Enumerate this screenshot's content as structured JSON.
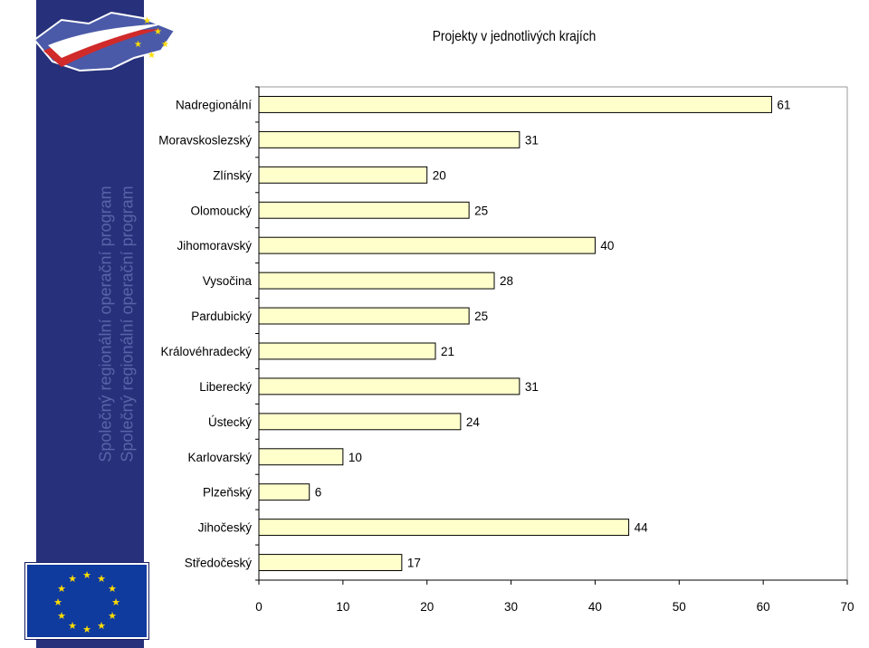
{
  "sidebar": {
    "band_text": "Společný regionální operační program",
    "background": "#27307a"
  },
  "chart_data": {
    "type": "bar",
    "orientation": "horizontal",
    "title": "Projekty v jednotlivých krajích",
    "categories": [
      "Nadregionální",
      "Moravskoslezský",
      "Zlínský",
      "Olomoucký",
      "Jihomoravský",
      "Vysočina",
      "Pardubický",
      "Královéhradecký",
      "Liberecký",
      "Ústecký",
      "Karlovarský",
      "Plzeňský",
      "Jihočeský",
      "Středočeský"
    ],
    "values": [
      61,
      31,
      20,
      25,
      40,
      28,
      25,
      21,
      31,
      24,
      10,
      6,
      44,
      17
    ],
    "xlim": [
      0,
      70
    ],
    "xticks": [
      0,
      10,
      20,
      30,
      40,
      50,
      60,
      70
    ],
    "bar_color": "#ffffcc",
    "bar_edge_color": "#000000",
    "grid": false,
    "legend": "none"
  }
}
